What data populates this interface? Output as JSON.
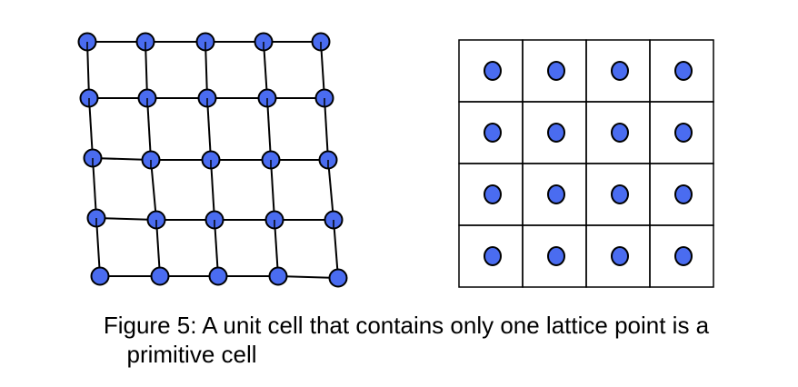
{
  "caption": {
    "line1": "Figure 5: A unit cell that contains only one lattice point is a",
    "line2": "primitive cell"
  },
  "colors": {
    "atom_fill": "#4a6cf0",
    "atom_stroke": "#000000",
    "line": "#000000",
    "background": "#ffffff"
  },
  "left_lattice": {
    "rows": 5,
    "cols": 5
  },
  "right_grid": {
    "rows": 4,
    "cols": 4
  }
}
